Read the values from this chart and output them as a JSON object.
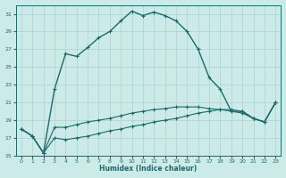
{
  "title": "",
  "xlabel": "Humidex (Indice chaleur)",
  "bg_color": "#cceae8",
  "grid_color": "#aad4d0",
  "line_color": "#1a6b6b",
  "xlim": [
    -0.5,
    23.5
  ],
  "ylim": [
    15,
    32
  ],
  "xticks": [
    0,
    1,
    2,
    3,
    4,
    5,
    6,
    7,
    8,
    9,
    10,
    11,
    12,
    13,
    14,
    15,
    16,
    17,
    18,
    19,
    20,
    21,
    22,
    23
  ],
  "yticks": [
    15,
    17,
    19,
    21,
    23,
    25,
    27,
    29,
    31
  ],
  "line1_x": [
    0,
    1,
    2,
    3,
    4,
    5,
    6,
    7,
    8,
    9,
    10,
    11,
    12,
    13,
    14,
    15,
    16,
    17,
    18,
    19,
    20,
    21,
    22,
    23
  ],
  "line1_y": [
    18.0,
    17.2,
    15.3,
    22.5,
    26.5,
    26.2,
    27.2,
    28.3,
    29.0,
    30.2,
    31.3,
    30.8,
    31.2,
    30.8,
    30.2,
    29.0,
    27.0,
    23.8,
    22.5,
    20.0,
    20.0,
    19.2,
    18.8,
    21.0
  ],
  "line2_x": [
    0,
    1,
    2,
    3,
    4,
    5,
    6,
    7,
    8,
    9,
    10,
    11,
    12,
    13,
    14,
    15,
    16,
    17,
    18,
    19,
    20,
    21,
    22,
    23
  ],
  "line2_y": [
    18.0,
    17.2,
    15.3,
    18.2,
    18.2,
    18.5,
    18.8,
    19.0,
    19.2,
    19.5,
    19.8,
    20.0,
    20.2,
    20.3,
    20.5,
    20.5,
    20.5,
    20.3,
    20.2,
    20.0,
    19.8,
    19.2,
    18.8,
    21.0
  ],
  "line3_x": [
    0,
    1,
    2,
    3,
    4,
    5,
    6,
    7,
    8,
    9,
    10,
    11,
    12,
    13,
    14,
    15,
    16,
    17,
    18,
    19,
    20,
    21,
    22,
    23
  ],
  "line3_y": [
    18.0,
    17.2,
    15.3,
    17.0,
    16.8,
    17.0,
    17.2,
    17.5,
    17.8,
    18.0,
    18.3,
    18.5,
    18.8,
    19.0,
    19.2,
    19.5,
    19.8,
    20.0,
    20.2,
    20.2,
    20.0,
    19.2,
    18.8,
    21.0
  ]
}
